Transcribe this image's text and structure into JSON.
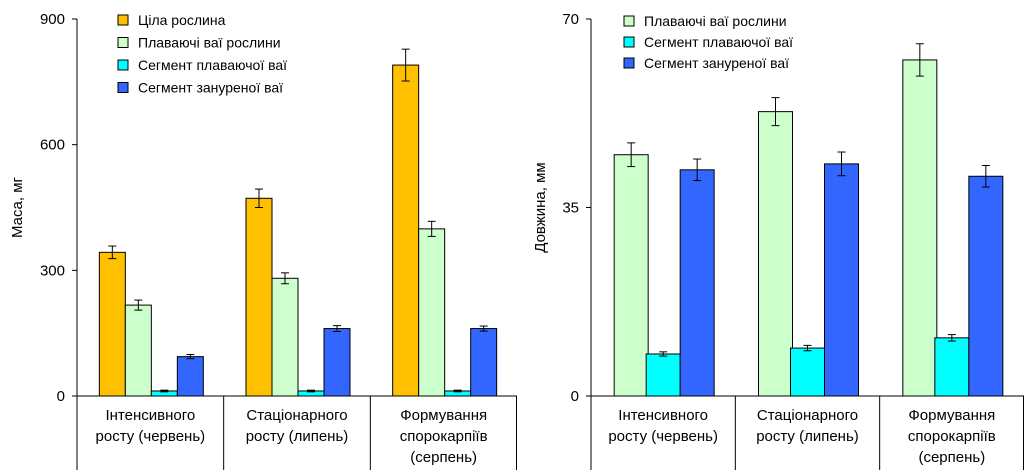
{
  "chart_data": [
    {
      "type": "bar",
      "title": "",
      "xlabel": "",
      "ylabel": "Маса, мг",
      "ylim": [
        0,
        900
      ],
      "yticks": [
        0,
        300,
        600,
        900
      ],
      "grid": false,
      "legend_position": "top-left",
      "categories": [
        [
          "Інтенсивного",
          "росту (червень)"
        ],
        [
          "Стаціонарного",
          "росту (липень)"
        ],
        [
          "Формування",
          "спорокарпіїв",
          "(серпень)"
        ]
      ],
      "series": [
        {
          "name": "Ціла рослина",
          "color": "#FFC000",
          "values": [
            343,
            472,
            790
          ],
          "errors": [
            15,
            22,
            38
          ]
        },
        {
          "name": "Плаваючі ваї рослини",
          "color": "#CCFFCC",
          "values": [
            217,
            281,
            399
          ],
          "errors": [
            12,
            13,
            18
          ]
        },
        {
          "name": "Сегмент плаваючої ваї",
          "color": "#00FFFF",
          "values": [
            12,
            12,
            12
          ],
          "errors": [
            2,
            2,
            2
          ]
        },
        {
          "name": "Сегмент зануреної ваї",
          "color": "#3366FF",
          "values": [
            94,
            161,
            161
          ],
          "errors": [
            5,
            7,
            6
          ]
        }
      ]
    },
    {
      "type": "bar",
      "title": "",
      "xlabel": "",
      "ylabel": "Довжина, мм",
      "ylim": [
        0,
        70
      ],
      "yticks": [
        0,
        35,
        70
      ],
      "grid": false,
      "legend_position": "top-left",
      "categories": [
        [
          "Інтенсивного",
          "росту (червень)"
        ],
        [
          "Стаціонарного",
          "росту (липень)"
        ],
        [
          "Формування",
          "спорокарпіїв",
          "(серпень)"
        ]
      ],
      "series": [
        {
          "name": "Плаваючі ваї рослини",
          "color": "#CCFFCC",
          "values": [
            44.8,
            52.8,
            62.4
          ],
          "errors": [
            2.2,
            2.6,
            3.0
          ]
        },
        {
          "name": "Сегмент плаваючої ваї",
          "color": "#00FFFF",
          "values": [
            7.8,
            8.9,
            10.8
          ],
          "errors": [
            0.4,
            0.5,
            0.6
          ]
        },
        {
          "name": "Сегмент зануреної ваї",
          "color": "#3366FF",
          "values": [
            42.0,
            43.1,
            40.8
          ],
          "errors": [
            2.0,
            2.2,
            2.0
          ]
        }
      ]
    }
  ]
}
